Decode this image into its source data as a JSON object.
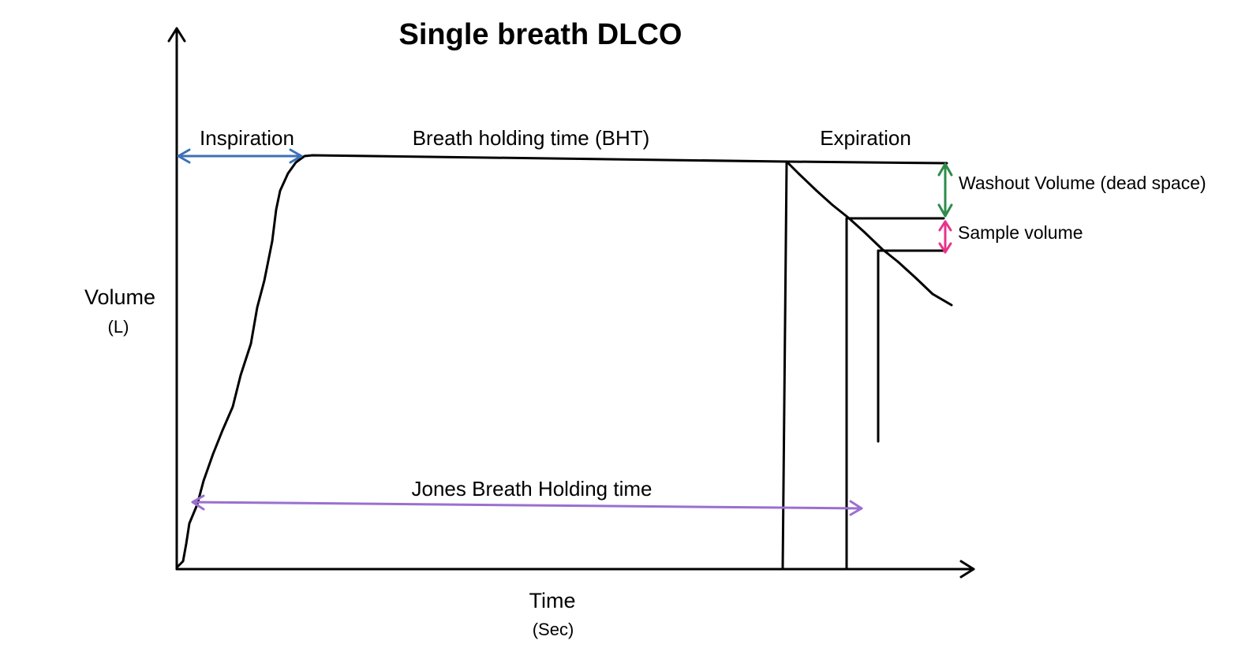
{
  "diagram": {
    "title": "Single breath DLCO",
    "y_axis": {
      "label": "Volume",
      "unit": "(L)"
    },
    "x_axis": {
      "label": "Time",
      "unit": "(Sec)"
    },
    "phases": {
      "inspiration": "Inspiration",
      "breath_holding": "Breath holding time (BHT)",
      "expiration": "Expiration"
    },
    "annotations": {
      "washout": "Washout Volume (dead space)",
      "sample": "Sample volume",
      "jones": "Jones Breath Holding time"
    },
    "colors": {
      "inspiration_arrow": "#3d72b4",
      "washout_arrow": "#2e8b4a",
      "sample_arrow": "#e8338a",
      "jones_arrow": "#9b6fd0",
      "line": "#000000"
    }
  }
}
